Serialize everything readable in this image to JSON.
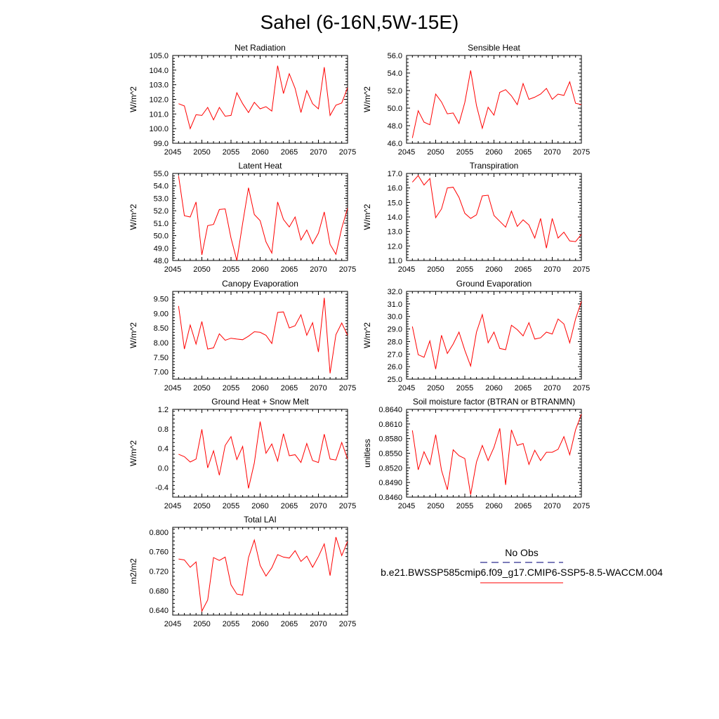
{
  "page_title": "Sahel (6-16N,5W-15E)",
  "legend": {
    "entries": [
      {
        "label": "No Obs",
        "color": "#2d2d8f",
        "style": "dashed"
      },
      {
        "label": "b.e21.BWSSP585cmip6.f09_g17.CMIP6-SSP5-8.5-WACCM.004",
        "color": "#ff0000",
        "style": "solid"
      }
    ]
  },
  "chart_data": [
    {
      "id": "net-radiation",
      "type": "line",
      "title": "Net Radiation",
      "ylabel": "W/m^2",
      "xlim": [
        2045,
        2075
      ],
      "ylim": [
        99.0,
        105.0
      ],
      "yticks": [
        99.0,
        100.0,
        101.0,
        102.0,
        103.0,
        104.0,
        105.0
      ],
      "ytick_labels": [
        "99.0",
        "100.0",
        "101.0",
        "102.0",
        "103.0",
        "104.0",
        "105.0"
      ],
      "xticks": [
        2045,
        2050,
        2055,
        2060,
        2065,
        2070,
        2075
      ],
      "xtick_labels": [
        "2045",
        "2050",
        "2055",
        "2060",
        "2065",
        "2070",
        "2075"
      ],
      "series": [
        {
          "name": "b.e21.BWSSP585cmip6.f09_g17.CMIP6-SSP5-8.5-WACCM.004",
          "color": "#ff0000",
          "x": [
            2046,
            2047,
            2048,
            2049,
            2050,
            2051,
            2052,
            2053,
            2054,
            2055,
            2056,
            2057,
            2058,
            2059,
            2060,
            2061,
            2062,
            2063,
            2064,
            2065,
            2066,
            2067,
            2068,
            2069,
            2070,
            2071,
            2072,
            2073,
            2074,
            2075
          ],
          "values": [
            101.7,
            101.55,
            100.0,
            100.95,
            100.9,
            101.45,
            100.6,
            101.45,
            100.85,
            100.9,
            102.45,
            101.7,
            101.1,
            101.8,
            101.35,
            101.5,
            101.2,
            104.3,
            102.4,
            103.75,
            102.75,
            101.1,
            102.6,
            101.7,
            101.35,
            104.2,
            100.9,
            101.6,
            101.75,
            102.8
          ]
        }
      ]
    },
    {
      "id": "sensible-heat",
      "type": "line",
      "title": "Sensible Heat",
      "ylabel": "W/m^2",
      "xlim": [
        2045,
        2075
      ],
      "ylim": [
        46.0,
        56.0
      ],
      "yticks": [
        46.0,
        48.0,
        50.0,
        52.0,
        54.0,
        56.0
      ],
      "ytick_labels": [
        "46.0",
        "48.0",
        "50.0",
        "52.0",
        "54.0",
        "56.0"
      ],
      "xticks": [
        2045,
        2050,
        2055,
        2060,
        2065,
        2070,
        2075
      ],
      "xtick_labels": [
        "2045",
        "2050",
        "2055",
        "2060",
        "2065",
        "2070",
        "2075"
      ],
      "series": [
        {
          "name": "b.e21.BWSSP585cmip6.f09_g17.CMIP6-SSP5-8.5-WACCM.004",
          "color": "#ff0000",
          "x": [
            2046,
            2047,
            2048,
            2049,
            2050,
            2051,
            2052,
            2053,
            2054,
            2055,
            2056,
            2057,
            2058,
            2059,
            2060,
            2061,
            2062,
            2063,
            2064,
            2065,
            2066,
            2067,
            2068,
            2069,
            2070,
            2071,
            2072,
            2073,
            2074,
            2075
          ],
          "values": [
            46.6,
            49.7,
            48.4,
            48.1,
            51.6,
            50.7,
            49.35,
            49.45,
            48.25,
            50.65,
            54.3,
            50.3,
            47.7,
            50.1,
            49.2,
            51.8,
            52.1,
            51.4,
            50.4,
            52.8,
            51.0,
            51.25,
            51.6,
            52.25,
            51.0,
            51.6,
            51.45,
            53.0,
            50.55,
            50.4
          ]
        }
      ]
    },
    {
      "id": "latent-heat",
      "type": "line",
      "title": "Latent Heat",
      "ylabel": "W/m^2",
      "xlim": [
        2045,
        2075
      ],
      "ylim": [
        48.0,
        55.0
      ],
      "yticks": [
        48.0,
        49.0,
        50.0,
        51.0,
        52.0,
        53.0,
        54.0,
        55.0
      ],
      "ytick_labels": [
        "48.0",
        "49.0",
        "50.0",
        "51.0",
        "52.0",
        "53.0",
        "54.0",
        "55.0"
      ],
      "xticks": [
        2045,
        2050,
        2055,
        2060,
        2065,
        2070,
        2075
      ],
      "xtick_labels": [
        "2045",
        "2050",
        "2055",
        "2060",
        "2065",
        "2070",
        "2075"
      ],
      "series": [
        {
          "name": "b.e21.BWSSP585cmip6.f09_g17.CMIP6-SSP5-8.5-WACCM.004",
          "color": "#ff0000",
          "x": [
            2046,
            2047,
            2048,
            2049,
            2050,
            2051,
            2052,
            2053,
            2054,
            2055,
            2056,
            2057,
            2058,
            2059,
            2060,
            2061,
            2062,
            2063,
            2064,
            2065,
            2066,
            2067,
            2068,
            2069,
            2070,
            2071,
            2072,
            2073,
            2074,
            2075
          ],
          "values": [
            54.8,
            51.6,
            51.5,
            52.7,
            48.45,
            50.8,
            50.9,
            52.1,
            52.15,
            49.8,
            48.0,
            51.0,
            53.85,
            51.7,
            51.2,
            49.5,
            48.6,
            52.7,
            51.3,
            50.7,
            51.5,
            49.65,
            50.45,
            49.35,
            50.2,
            51.9,
            49.3,
            48.5,
            50.6,
            52.2
          ]
        }
      ]
    },
    {
      "id": "transpiration",
      "type": "line",
      "title": "Transpiration",
      "ylabel": "W/m^2",
      "xlim": [
        2045,
        2075
      ],
      "ylim": [
        11.0,
        17.0
      ],
      "yticks": [
        11.0,
        12.0,
        13.0,
        14.0,
        15.0,
        16.0,
        17.0
      ],
      "ytick_labels": [
        "11.0",
        "12.0",
        "13.0",
        "14.0",
        "15.0",
        "16.0",
        "17.0"
      ],
      "xticks": [
        2045,
        2050,
        2055,
        2060,
        2065,
        2070,
        2075
      ],
      "xtick_labels": [
        "2045",
        "2050",
        "2055",
        "2060",
        "2065",
        "2070",
        "2075"
      ],
      "series": [
        {
          "name": "b.e21.BWSSP585cmip6.f09_g17.CMIP6-SSP5-8.5-WACCM.004",
          "color": "#ff0000",
          "x": [
            2046,
            2047,
            2048,
            2049,
            2050,
            2051,
            2052,
            2053,
            2054,
            2055,
            2056,
            2057,
            2058,
            2059,
            2060,
            2061,
            2062,
            2063,
            2064,
            2065,
            2066,
            2067,
            2068,
            2069,
            2070,
            2071,
            2072,
            2073,
            2074,
            2075
          ],
          "values": [
            16.4,
            16.85,
            16.2,
            16.65,
            13.95,
            14.55,
            16.0,
            16.05,
            15.35,
            14.25,
            13.9,
            14.15,
            15.45,
            15.5,
            14.1,
            13.7,
            13.3,
            14.4,
            13.35,
            13.8,
            13.45,
            12.55,
            13.9,
            11.85,
            13.9,
            12.55,
            12.95,
            12.35,
            12.3,
            12.8
          ]
        }
      ]
    },
    {
      "id": "canopy-evaporation",
      "type": "line",
      "title": "Canopy Evaporation",
      "ylabel": "W/m^2",
      "xlim": [
        2045,
        2075
      ],
      "ylim": [
        6.75,
        9.75
      ],
      "yticks": [
        7.0,
        7.5,
        8.0,
        8.5,
        9.0,
        9.5
      ],
      "ytick_labels": [
        "7.00",
        "7.50",
        "8.00",
        "8.50",
        "9.00",
        "9.50"
      ],
      "xticks": [
        2045,
        2050,
        2055,
        2060,
        2065,
        2070,
        2075
      ],
      "xtick_labels": [
        "2045",
        "2050",
        "2055",
        "2060",
        "2065",
        "2070",
        "2075"
      ],
      "series": [
        {
          "name": "b.e21.BWSSP585cmip6.f09_g17.CMIP6-SSP5-8.5-WACCM.004",
          "color": "#ff0000",
          "x": [
            2046,
            2047,
            2048,
            2049,
            2050,
            2051,
            2052,
            2053,
            2054,
            2055,
            2056,
            2057,
            2058,
            2059,
            2060,
            2061,
            2062,
            2063,
            2064,
            2065,
            2066,
            2067,
            2068,
            2069,
            2070,
            2071,
            2072,
            2073,
            2074,
            2075
          ],
          "values": [
            9.25,
            7.78,
            8.6,
            7.95,
            8.72,
            7.78,
            7.82,
            8.3,
            8.08,
            8.15,
            8.12,
            8.1,
            8.22,
            8.37,
            8.35,
            8.25,
            7.97,
            9.03,
            9.05,
            8.5,
            8.58,
            8.95,
            8.25,
            8.68,
            7.68,
            9.53,
            6.95,
            8.27,
            8.67,
            8.25
          ]
        }
      ]
    },
    {
      "id": "ground-evaporation",
      "type": "line",
      "title": "Ground Evaporation",
      "ylabel": "W/m^2",
      "xlim": [
        2045,
        2075
      ],
      "ylim": [
        25.0,
        32.0
      ],
      "yticks": [
        25.0,
        26.0,
        27.0,
        28.0,
        29.0,
        30.0,
        31.0,
        32.0
      ],
      "ytick_labels": [
        "25.0",
        "26.0",
        "27.0",
        "28.0",
        "29.0",
        "30.0",
        "31.0",
        "32.0"
      ],
      "xticks": [
        2045,
        2050,
        2055,
        2060,
        2065,
        2070,
        2075
      ],
      "xtick_labels": [
        "2045",
        "2050",
        "2055",
        "2060",
        "2065",
        "2070",
        "2075"
      ],
      "series": [
        {
          "name": "b.e21.BWSSP585cmip6.f09_g17.CMIP6-SSP5-8.5-WACCM.004",
          "color": "#ff0000",
          "x": [
            2046,
            2047,
            2048,
            2049,
            2050,
            2051,
            2052,
            2053,
            2054,
            2055,
            2056,
            2057,
            2058,
            2059,
            2060,
            2061,
            2062,
            2063,
            2064,
            2065,
            2066,
            2067,
            2068,
            2069,
            2070,
            2071,
            2072,
            2073,
            2074,
            2075
          ],
          "values": [
            29.2,
            26.95,
            26.75,
            28.05,
            25.8,
            28.5,
            27.05,
            27.8,
            28.75,
            27.3,
            26.05,
            28.75,
            30.15,
            27.9,
            28.75,
            27.45,
            27.35,
            29.3,
            28.95,
            28.45,
            29.5,
            28.2,
            28.3,
            28.75,
            28.6,
            29.8,
            29.4,
            27.9,
            29.8,
            31.2
          ]
        }
      ]
    },
    {
      "id": "ground-heat-snow-melt",
      "type": "line",
      "title": "Ground Heat + Snow Melt",
      "ylabel": "W/m^2",
      "xlim": [
        2045,
        2075
      ],
      "ylim": [
        -0.6,
        1.2
      ],
      "yticks": [
        -0.4,
        0.0,
        0.4,
        0.8,
        1.2
      ],
      "ytick_labels": [
        "-0.4",
        "0.0",
        "0.4",
        "0.8",
        "1.2"
      ],
      "xticks": [
        2045,
        2050,
        2055,
        2060,
        2065,
        2070,
        2075
      ],
      "xtick_labels": [
        "2045",
        "2050",
        "2055",
        "2060",
        "2065",
        "2070",
        "2075"
      ],
      "series": [
        {
          "name": "b.e21.BWSSP585cmip6.f09_g17.CMIP6-SSP5-8.5-WACCM.004",
          "color": "#ff0000",
          "x": [
            2046,
            2047,
            2048,
            2049,
            2050,
            2051,
            2052,
            2053,
            2054,
            2055,
            2056,
            2057,
            2058,
            2059,
            2060,
            2061,
            2062,
            2063,
            2064,
            2065,
            2066,
            2067,
            2068,
            2069,
            2070,
            2071,
            2072,
            2073,
            2074,
            2075
          ],
          "values": [
            0.28,
            0.23,
            0.12,
            0.18,
            0.79,
            0.0,
            0.35,
            -0.15,
            0.46,
            0.64,
            0.17,
            0.44,
            -0.42,
            0.1,
            0.95,
            0.3,
            0.49,
            0.14,
            0.7,
            0.25,
            0.27,
            0.11,
            0.5,
            0.15,
            0.11,
            0.69,
            0.18,
            0.16,
            0.52,
            0.18
          ]
        }
      ]
    },
    {
      "id": "soil-moisture-factor",
      "type": "line",
      "title": "Soil moisture factor (BTRAN or BTRANMN)",
      "ylabel": "unitless",
      "xlim": [
        2045,
        2075
      ],
      "ylim": [
        0.846,
        0.864
      ],
      "yticks": [
        0.846,
        0.849,
        0.852,
        0.855,
        0.858,
        0.861,
        0.864
      ],
      "ytick_labels": [
        "0.8460",
        "0.8490",
        "0.8520",
        "0.8550",
        "0.8580",
        "0.8610",
        "0.8640"
      ],
      "xticks": [
        2045,
        2050,
        2055,
        2060,
        2065,
        2070,
        2075
      ],
      "xtick_labels": [
        "2045",
        "2050",
        "2055",
        "2060",
        "2065",
        "2070",
        "2075"
      ],
      "series": [
        {
          "name": "b.e21.BWSSP585cmip6.f09_g17.CMIP6-SSP5-8.5-WACCM.004",
          "color": "#ff0000",
          "x": [
            2046,
            2047,
            2048,
            2049,
            2050,
            2051,
            2052,
            2053,
            2054,
            2055,
            2056,
            2057,
            2058,
            2059,
            2060,
            2061,
            2062,
            2063,
            2064,
            2065,
            2066,
            2067,
            2068,
            2069,
            2070,
            2071,
            2072,
            2073,
            2074,
            2075
          ],
          "values": [
            0.8597,
            0.8516,
            0.8553,
            0.8527,
            0.8588,
            0.8515,
            0.8475,
            0.8557,
            0.8545,
            0.8539,
            0.8465,
            0.8532,
            0.8566,
            0.8535,
            0.8562,
            0.8601,
            0.8485,
            0.8598,
            0.8566,
            0.857,
            0.8527,
            0.8556,
            0.8535,
            0.8552,
            0.8552,
            0.8558,
            0.8584,
            0.8547,
            0.8598,
            0.863
          ]
        }
      ]
    },
    {
      "id": "total-lai",
      "type": "line",
      "title": "Total LAI",
      "ylabel": "m2/m2",
      "xlim": [
        2045,
        2075
      ],
      "ylim": [
        0.63,
        0.81
      ],
      "yticks": [
        0.64,
        0.68,
        0.72,
        0.76,
        0.8
      ],
      "ytick_labels": [
        "0.640",
        "0.680",
        "0.720",
        "0.760",
        "0.800"
      ],
      "xticks": [
        2045,
        2050,
        2055,
        2060,
        2065,
        2070,
        2075
      ],
      "xtick_labels": [
        "2045",
        "2050",
        "2055",
        "2060",
        "2065",
        "2070",
        "2075"
      ],
      "series": [
        {
          "name": "b.e21.BWSSP585cmip6.f09_g17.CMIP6-SSP5-8.5-WACCM.004",
          "color": "#ff0000",
          "x": [
            2046,
            2047,
            2048,
            2049,
            2050,
            2051,
            2052,
            2053,
            2054,
            2055,
            2056,
            2057,
            2058,
            2059,
            2060,
            2061,
            2062,
            2063,
            2064,
            2065,
            2066,
            2067,
            2068,
            2069,
            2070,
            2071,
            2072,
            2073,
            2074,
            2075
          ],
          "values": [
            0.745,
            0.743,
            0.728,
            0.739,
            0.638,
            0.661,
            0.748,
            0.742,
            0.749,
            0.692,
            0.673,
            0.671,
            0.748,
            0.784,
            0.732,
            0.71,
            0.727,
            0.754,
            0.749,
            0.747,
            0.762,
            0.74,
            0.751,
            0.728,
            0.75,
            0.776,
            0.711,
            0.79,
            0.752,
            0.781
          ]
        }
      ]
    }
  ]
}
